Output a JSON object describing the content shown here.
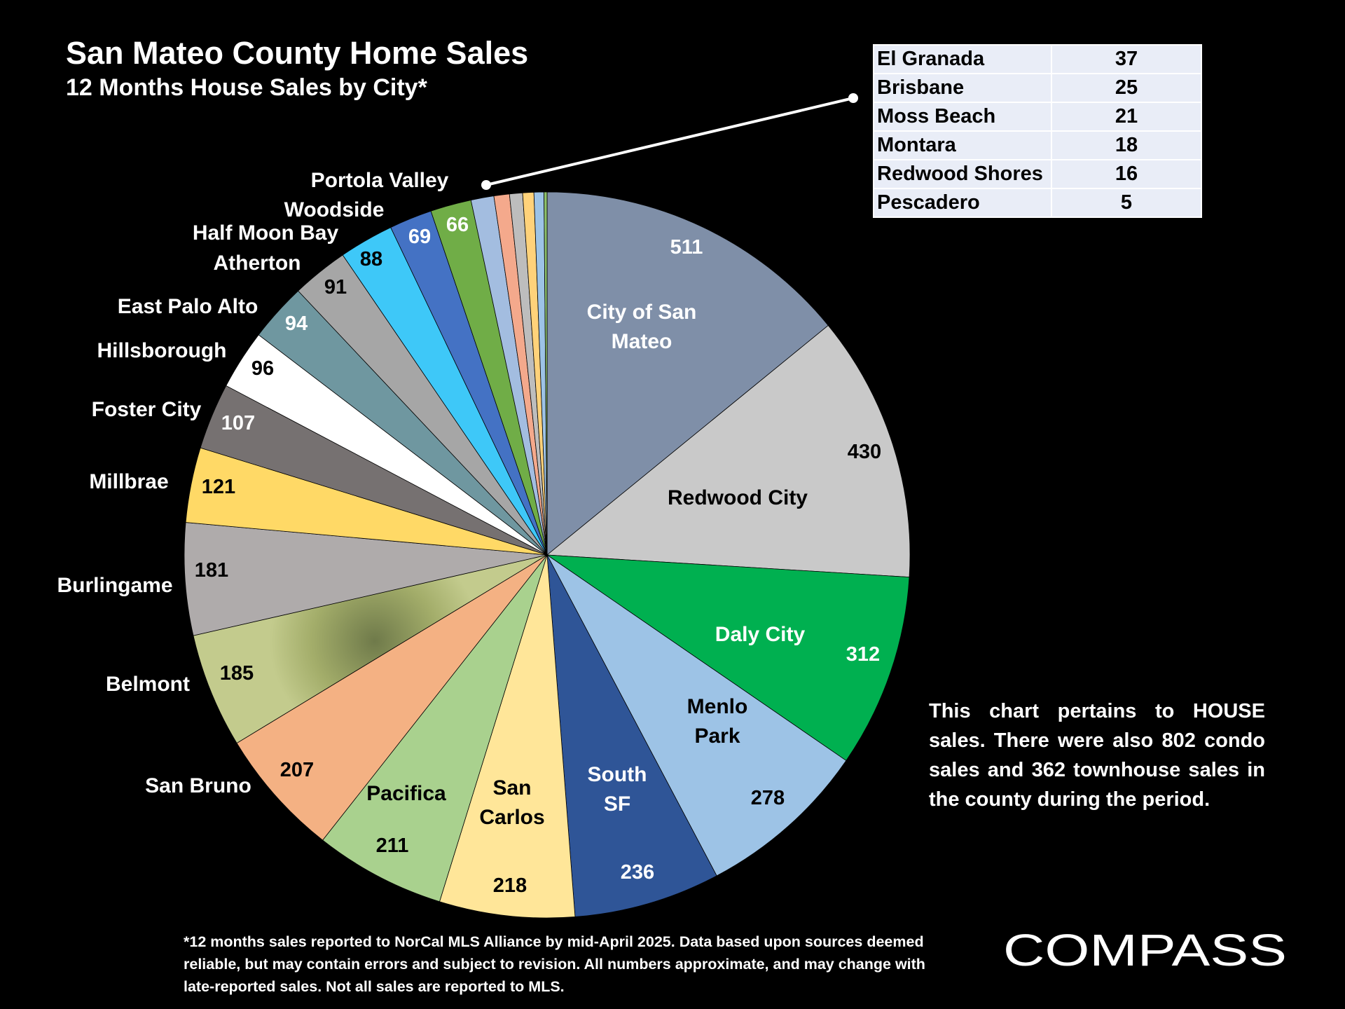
{
  "header": {
    "title": "San Mateo County Home Sales",
    "subtitle": "12 Months House Sales by City*"
  },
  "chart_data": {
    "type": "pie",
    "title": "San Mateo County Home Sales",
    "subtitle": "12 Months House Sales by City*",
    "start": "12 o'clock, clockwise",
    "slices": [
      {
        "label": "City of San Mateo",
        "value": 511,
        "value_label": "511",
        "color": "#7f8fa8"
      },
      {
        "label": "Redwood City",
        "value": 430,
        "value_label": "430",
        "color": "#c9c9c9"
      },
      {
        "label": "Daly City",
        "value": 312,
        "value_label": "312",
        "color": "#00b050"
      },
      {
        "label": "Menlo Park",
        "value": 278,
        "value_label": "278",
        "color": "#9dc3e6"
      },
      {
        "label": "South SF",
        "value": 236,
        "value_label": "236",
        "color": "#2f5597"
      },
      {
        "label": "San Carlos",
        "value": 218,
        "value_label": "218",
        "color": "#ffe699"
      },
      {
        "label": "Pacifica",
        "value": 211,
        "value_label": "211",
        "color": "#a9d18e"
      },
      {
        "label": "San Bruno",
        "value": 207,
        "value_label": "207",
        "color": "#f4b183"
      },
      {
        "label": "Belmont",
        "value": 185,
        "value_label": "185",
        "color": "#b5bd7c"
      },
      {
        "label": "Burlingame",
        "value": 181,
        "value_label": "181",
        "color": "#afabab"
      },
      {
        "label": "Millbrae",
        "value": 121,
        "value_label": "121",
        "color": "#ffd966"
      },
      {
        "label": "Foster City",
        "value": 107,
        "value_label": "107",
        "color": "#767171"
      },
      {
        "label": "Hillsborough",
        "value": 96,
        "value_label": "96",
        "color": "#ffffff"
      },
      {
        "label": "East Palo Alto",
        "value": 94,
        "value_label": "94",
        "color": "#6f97a0"
      },
      {
        "label": "Atherton",
        "value": 91,
        "value_label": "91",
        "color": "#a6a6a6"
      },
      {
        "label": "Half Moon Bay",
        "value": 88,
        "value_label": "88",
        "color": "#3ec8f8"
      },
      {
        "label": "Woodside",
        "value": 69,
        "value_label": "69",
        "color": "#4472c4"
      },
      {
        "label": "Portola Valley",
        "value": 66,
        "value_label": "66",
        "color": "#70ad47"
      },
      {
        "label": "El Granada",
        "value": 37,
        "color": "#a3bde0"
      },
      {
        "label": "Brisbane",
        "value": 25,
        "color": "#f4a98c"
      },
      {
        "label": "Moss Beach",
        "value": 21,
        "color": "#bdbdbd"
      },
      {
        "label": "Montara",
        "value": 18,
        "color": "#ffd27a"
      },
      {
        "label": "Redwood Shores",
        "value": 16,
        "color": "#9dc3e6"
      },
      {
        "label": "Pescadero",
        "value": 5,
        "color": "#8dc06a"
      }
    ],
    "small_cities_table": [
      {
        "city": "El Granada",
        "sales": "37"
      },
      {
        "city": "Brisbane",
        "sales": "25"
      },
      {
        "city": "Moss Beach",
        "sales": "21"
      },
      {
        "city": "Montara",
        "sales": "18"
      },
      {
        "city": "Redwood Shores",
        "sales": "16"
      },
      {
        "city": "Pescadero",
        "sales": "5"
      }
    ]
  },
  "note": "This chart pertains to HOUSE sales. There were also 802 condo sales and 362 townhouse sales in the county during the period.",
  "footnote": "*12 months sales reported to NorCal MLS Alliance by mid-April 2025. Data based upon sources deemed reliable, but may contain errors and subject to revision. All numbers approximate, and may change with late-reported sales. Not all sales are reported to MLS.",
  "brand": {
    "logo_text": "COMPASS"
  }
}
